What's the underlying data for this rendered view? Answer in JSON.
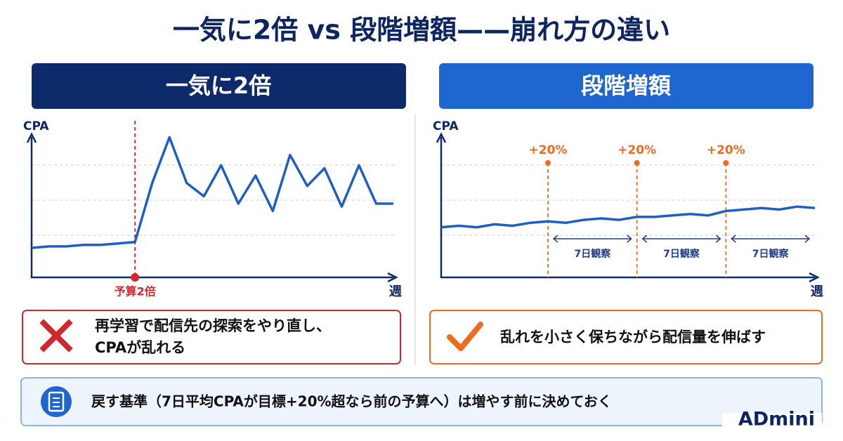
{
  "title": "一気に2倍 vs 段階増額——崩れ方の違い",
  "chart_data": [
    {
      "type": "line",
      "heading": "一気に2倍",
      "y_label": "CPA",
      "x_label": "週",
      "categories": [
        null,
        null,
        null,
        null,
        null,
        null,
        null,
        null,
        null,
        null,
        null,
        null,
        null,
        null,
        null,
        null,
        null,
        null,
        null,
        null,
        null,
        null
      ],
      "values": [
        20,
        21,
        21,
        22,
        22,
        23,
        24,
        64,
        95,
        64,
        55,
        76,
        50,
        69,
        45,
        83,
        62,
        74,
        48,
        76,
        50,
        50
      ],
      "ylim": [
        0,
        100
      ],
      "color": "#1f5fc4",
      "annotations": [
        {
          "label": "予算2倍",
          "x": 6,
          "color": "#d0282e"
        }
      ],
      "note": [
        "再学習で配信先の探索をやり直し、",
        "CPAが乱れる"
      ],
      "note_color": "#d0282e"
    },
    {
      "type": "line",
      "heading": "段階増額",
      "y_label": "CPA",
      "x_label": "週",
      "categories": [
        null,
        null,
        null,
        null,
        null,
        null,
        null,
        null,
        null,
        null,
        null,
        null,
        null,
        null,
        null,
        null,
        null,
        null,
        null,
        null,
        null,
        null
      ],
      "values": [
        34,
        35,
        34,
        36,
        35,
        37,
        38,
        37,
        39,
        40,
        39,
        41,
        41,
        42,
        43,
        42,
        45,
        46,
        47,
        46,
        48,
        47
      ],
      "ylim": [
        0,
        100
      ],
      "color": "#1f5fc4",
      "annotations": [
        {
          "label": "+20%",
          "x": 6,
          "color": "#f26b1d"
        },
        {
          "label": "+20%",
          "x": 11,
          "color": "#f26b1d"
        },
        {
          "label": "+20%",
          "x": 16,
          "color": "#f26b1d"
        }
      ],
      "spans": [
        {
          "label": "7日観察",
          "from": 6,
          "to": 11
        },
        {
          "label": "7日観察",
          "from": 11,
          "to": 16
        },
        {
          "label": "7日観察",
          "from": 16,
          "to": 21
        }
      ],
      "note": [
        "乱れを小さく保ちながら配信量を伸ばす"
      ],
      "note_color": "#f26b1d"
    }
  ],
  "footer": "戻す基準（7日平均CPAが目標+20%超なら前の予算へ）は増やす前に決めておく",
  "brand": "ADmini"
}
